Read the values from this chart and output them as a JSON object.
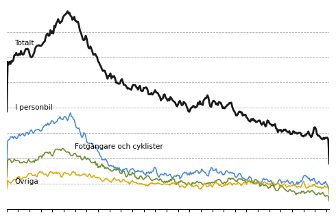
{
  "background_color": "#ffffff",
  "line_colors": {
    "Totalt": "#1a1a1a",
    "I personbil": "#4488dd",
    "Fotgangare": "#6b8c2a",
    "Ovriga": "#ddaa00"
  },
  "line_widths": {
    "Totalt": 2.0,
    "I personbil": 1.2,
    "Fotgangare": 1.2,
    "Ovriga": 1.2
  },
  "labels": {
    "Totalt": "Totalt",
    "I personbil": "I personbil",
    "Fotgangare": "Fotgängare och cyklister",
    "Ovriga": "Övriga"
  },
  "n_months": 340,
  "ylim": [
    0,
    800
  ],
  "yticks": [
    100,
    200,
    300,
    400,
    500,
    600,
    700
  ],
  "grid_color": "#aaaaaa",
  "grid_linestyle": "--",
  "grid_linewidth": 0.6,
  "label_fontsize": 7.5
}
